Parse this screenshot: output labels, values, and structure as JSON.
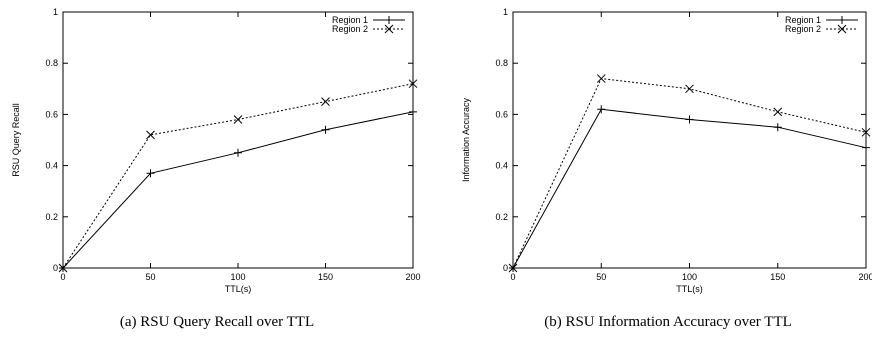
{
  "chart_data": [
    {
      "type": "line",
      "caption": "(a) RSU Query Recall over TTL",
      "xlabel": "TTL(s)",
      "ylabel": "RSU Query Recall",
      "xlim": [
        0,
        200
      ],
      "ylim": [
        0,
        1
      ],
      "xticks": [
        "0",
        "50",
        "100",
        "150",
        "200"
      ],
      "yticks": [
        "0",
        "0.2",
        "0.4",
        "0.6",
        "0.8",
        "1"
      ],
      "x": [
        0,
        50,
        100,
        150,
        200
      ],
      "legend_position": "top-right",
      "series": [
        {
          "name": "Region 1",
          "values": [
            0,
            0.37,
            0.45,
            0.54,
            0.61
          ],
          "style": "solid",
          "marker": "plus"
        },
        {
          "name": "Region 2",
          "values": [
            0,
            0.52,
            0.58,
            0.65,
            0.72
          ],
          "style": "dotted",
          "marker": "cross"
        }
      ]
    },
    {
      "type": "line",
      "caption": "(b) RSU Information Accuracy over TTL",
      "xlabel": "TTL(s)",
      "ylabel": "Information Accuracy",
      "xlim": [
        0,
        200
      ],
      "ylim": [
        0,
        1
      ],
      "xticks": [
        "0",
        "50",
        "100",
        "150",
        "200"
      ],
      "yticks": [
        "0",
        "0.2",
        "0.4",
        "0.6",
        "0.8",
        "1"
      ],
      "x": [
        0,
        50,
        100,
        150,
        200
      ],
      "legend_position": "top-right",
      "series": [
        {
          "name": "Region 1",
          "values": [
            0,
            0.62,
            0.58,
            0.55,
            0.47
          ],
          "style": "solid",
          "marker": "plus"
        },
        {
          "name": "Region 2",
          "values": [
            0,
            0.74,
            0.7,
            0.61,
            0.53
          ],
          "style": "dotted",
          "marker": "cross"
        }
      ]
    }
  ]
}
